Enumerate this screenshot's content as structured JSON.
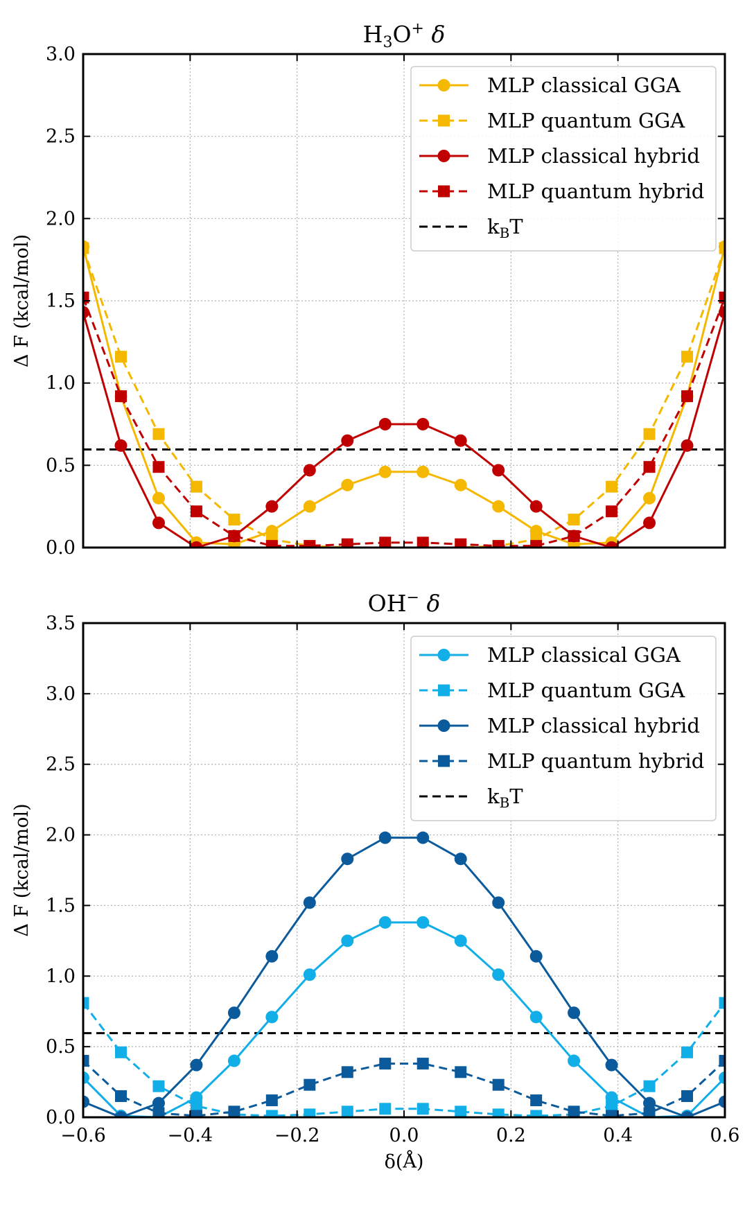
{
  "chart_data": [
    {
      "type": "line",
      "title": "H₃O⁺ δ",
      "title_base": "H",
      "title_sub": "3",
      "title_mid": "O",
      "title_sup": "+",
      "title_symbol": "δ",
      "xlabel": "",
      "ylabel": "Δ F (kcal/mol)",
      "xlim": [
        -0.6,
        0.6
      ],
      "ylim": [
        0.0,
        3.0
      ],
      "xticks": [
        -0.6,
        -0.4,
        -0.2,
        0.0,
        0.2,
        0.4,
        0.6
      ],
      "yticks": [
        0.0,
        0.5,
        1.0,
        1.5,
        2.0,
        2.5,
        3.0
      ],
      "xtick_labels": [],
      "ytick_labels": [
        "0.0",
        "0.5",
        "1.0",
        "1.5",
        "2.0",
        "2.5",
        "3.0"
      ],
      "grid": true,
      "legend_position": "upper-right",
      "x": [
        -0.6,
        -0.5294,
        -0.4588,
        -0.3882,
        -0.3176,
        -0.2471,
        -0.1765,
        -0.1059,
        -0.0353,
        0.0353,
        0.1059,
        0.1765,
        0.2471,
        0.3176,
        0.3882,
        0.4588,
        0.5294,
        0.6
      ],
      "series": [
        {
          "name": "MLP classical GGA",
          "color": "#f5b800",
          "dash": "solid",
          "marker": "circle",
          "values": [
            1.83,
            0.92,
            0.3,
            0.03,
            0.02,
            0.1,
            0.25,
            0.38,
            0.46,
            0.46,
            0.38,
            0.25,
            0.1,
            0.02,
            0.03,
            0.3,
            0.92,
            1.83
          ]
        },
        {
          "name": "MLP quantum GGA",
          "color": "#f5b800",
          "dash": "dashed",
          "marker": "square",
          "values": [
            1.82,
            1.16,
            0.69,
            0.37,
            0.17,
            0.05,
            0.01,
            0.0,
            0.0,
            0.0,
            0.0,
            0.01,
            0.05,
            0.17,
            0.37,
            0.69,
            1.16,
            1.82
          ]
        },
        {
          "name": "MLP classical hybrid",
          "color": "#c00000",
          "dash": "solid",
          "marker": "circle",
          "values": [
            1.43,
            0.62,
            0.15,
            0.0,
            0.07,
            0.25,
            0.47,
            0.65,
            0.75,
            0.75,
            0.65,
            0.47,
            0.25,
            0.07,
            0.0,
            0.15,
            0.62,
            1.43
          ]
        },
        {
          "name": "MLP quantum hybrid",
          "color": "#c00000",
          "dash": "dashed",
          "marker": "square",
          "values": [
            1.52,
            0.92,
            0.49,
            0.22,
            0.07,
            0.01,
            0.01,
            0.02,
            0.03,
            0.03,
            0.02,
            0.01,
            0.01,
            0.07,
            0.22,
            0.49,
            0.92,
            1.52
          ]
        }
      ],
      "reference_line": {
        "name": "kBT",
        "label_base": "k",
        "label_sub": "B",
        "label_tail": "T",
        "value": 0.596,
        "color": "#000000",
        "dash": "dashed"
      }
    },
    {
      "type": "line",
      "title": "OH⁻ δ",
      "title_base": "OH",
      "title_sup": "−",
      "title_symbol": "δ",
      "xlabel": "δ(Å)",
      "ylabel": "Δ F (kcal/mol)",
      "xlim": [
        -0.6,
        0.6
      ],
      "ylim": [
        0.0,
        3.5
      ],
      "xticks": [
        -0.6,
        -0.4,
        -0.2,
        0.0,
        0.2,
        0.4,
        0.6
      ],
      "yticks": [
        0.0,
        0.5,
        1.0,
        1.5,
        2.0,
        2.5,
        3.0,
        3.5
      ],
      "xtick_labels": [
        "−0.6",
        "−0.4",
        "−0.2",
        "0.0",
        "0.2",
        "0.4",
        "0.6"
      ],
      "ytick_labels": [
        "0.0",
        "0.5",
        "1.0",
        "1.5",
        "2.0",
        "2.5",
        "3.0",
        "3.5"
      ],
      "grid": true,
      "legend_position": "upper-right",
      "x": [
        -0.6,
        -0.5294,
        -0.4588,
        -0.3882,
        -0.3176,
        -0.2471,
        -0.1765,
        -0.1059,
        -0.0353,
        0.0353,
        0.1059,
        0.1765,
        0.2471,
        0.3176,
        0.3882,
        0.4588,
        0.5294,
        0.6
      ],
      "series": [
        {
          "name": "MLP classical GGA",
          "color": "#12aee8",
          "dash": "solid",
          "marker": "circle",
          "values": [
            0.28,
            0.01,
            0.0,
            0.14,
            0.4,
            0.71,
            1.01,
            1.25,
            1.38,
            1.38,
            1.25,
            1.01,
            0.71,
            0.4,
            0.14,
            0.0,
            0.01,
            0.28
          ]
        },
        {
          "name": "MLP quantum GGA",
          "color": "#12aee8",
          "dash": "dashed",
          "marker": "square",
          "values": [
            0.81,
            0.46,
            0.22,
            0.08,
            0.02,
            0.01,
            0.02,
            0.04,
            0.06,
            0.06,
            0.04,
            0.02,
            0.01,
            0.02,
            0.08,
            0.22,
            0.46,
            0.81
          ]
        },
        {
          "name": "MLP classical hybrid",
          "color": "#0a5a9c",
          "dash": "solid",
          "marker": "circle",
          "values": [
            0.11,
            0.0,
            0.1,
            0.37,
            0.74,
            1.14,
            1.52,
            1.83,
            1.98,
            1.98,
            1.83,
            1.52,
            1.14,
            0.74,
            0.37,
            0.1,
            0.0,
            0.11
          ]
        },
        {
          "name": "MLP quantum hybrid",
          "color": "#0a5a9c",
          "dash": "dashed",
          "marker": "square",
          "values": [
            0.4,
            0.15,
            0.03,
            0.01,
            0.04,
            0.12,
            0.23,
            0.32,
            0.38,
            0.38,
            0.32,
            0.23,
            0.12,
            0.04,
            0.01,
            0.03,
            0.15,
            0.4
          ]
        }
      ],
      "reference_line": {
        "name": "kBT",
        "label_base": "k",
        "label_sub": "B",
        "label_tail": "T",
        "value": 0.596,
        "color": "#000000",
        "dash": "dashed"
      }
    }
  ]
}
